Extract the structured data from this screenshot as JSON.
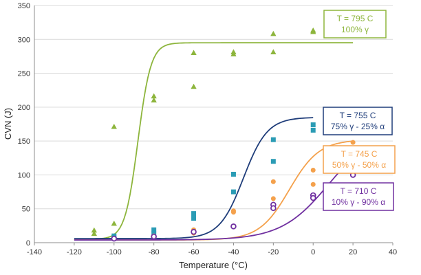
{
  "chart_data": {
    "type": "scatter",
    "title": "",
    "xlabel": "Temperature (°C)",
    "ylabel": "CVN (J)",
    "xlim": [
      -140,
      40
    ],
    "ylim": [
      0,
      350
    ],
    "x_ticks": [
      "-140",
      "-120",
      "-100",
      "-80",
      "-60",
      "-40",
      "-20",
      "0",
      "20",
      "40"
    ],
    "y_ticks": [
      "0",
      "50",
      "100",
      "150",
      "200",
      "250",
      "300",
      "350"
    ],
    "grid": "horizontal",
    "series": [
      {
        "name": "T = 795 C",
        "sub": "100% γ",
        "color": "#8db53c",
        "marker": "triangle",
        "points": [
          [
            -110,
            18
          ],
          [
            -110,
            13
          ],
          [
            -100,
            171
          ],
          [
            -100,
            28
          ],
          [
            -80,
            216
          ],
          [
            -80,
            210
          ],
          [
            -60,
            280
          ],
          [
            -60,
            230
          ],
          [
            -40,
            281
          ],
          [
            -40,
            278
          ],
          [
            -20,
            308
          ],
          [
            -20,
            281
          ],
          [
            0,
            313
          ],
          [
            0,
            311
          ]
        ],
        "fit": {
          "lower": 5,
          "upper": 295,
          "t0": -88,
          "c": 6.5,
          "x_range": [
            -120,
            20
          ]
        }
      },
      {
        "name": "T = 755 C",
        "sub": "75% γ - 25% α",
        "color": "#2b9cb5",
        "line_color": "#1f3d7a",
        "marker": "square",
        "points": [
          [
            -100,
            10
          ],
          [
            -100,
            7
          ],
          [
            -80,
            19
          ],
          [
            -80,
            13
          ],
          [
            -60,
            43
          ],
          [
            -60,
            36
          ],
          [
            -40,
            101
          ],
          [
            -40,
            75
          ],
          [
            -20,
            152
          ],
          [
            -20,
            120
          ],
          [
            0,
            174
          ],
          [
            0,
            166
          ]
        ],
        "fit": {
          "lower": 6,
          "upper": 185,
          "t0": -35,
          "c": 12,
          "x_range": [
            -120,
            0
          ]
        }
      },
      {
        "name": "T = 745 C",
        "sub": "50% γ - 50% α",
        "color": "#f4a14c",
        "marker": "circle",
        "points": [
          [
            -100,
            6
          ],
          [
            -80,
            10
          ],
          [
            -60,
            19
          ],
          [
            -60,
            14
          ],
          [
            -40,
            47
          ],
          [
            -40,
            45
          ],
          [
            -20,
            90
          ],
          [
            -20,
            65
          ],
          [
            0,
            107
          ],
          [
            0,
            86
          ],
          [
            20,
            148
          ]
        ],
        "fit": {
          "lower": 4,
          "upper": 152,
          "t0": -12,
          "c": 15,
          "x_range": [
            -120,
            20
          ]
        }
      },
      {
        "name": "T = 710 C",
        "sub": "10% γ - 90% α",
        "color": "#7030a0",
        "marker": "ring",
        "points": [
          [
            -100,
            6
          ],
          [
            -80,
            9
          ],
          [
            -60,
            16
          ],
          [
            -40,
            24
          ],
          [
            -20,
            56
          ],
          [
            -20,
            51
          ],
          [
            0,
            70
          ],
          [
            0,
            66
          ],
          [
            20,
            100
          ]
        ],
        "fit": {
          "lower": 4,
          "upper": 170,
          "t0": 8,
          "c": 24,
          "x_range": [
            -120,
            20
          ]
        }
      }
    ]
  }
}
